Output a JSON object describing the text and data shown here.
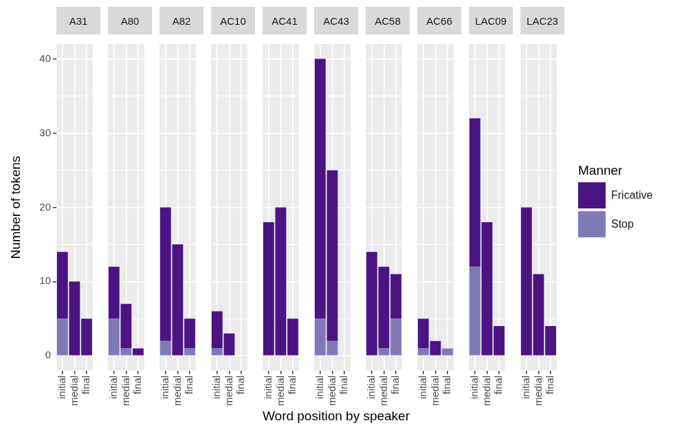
{
  "chart_data": [
    {
      "type": "bar",
      "title": "A31",
      "categories": [
        "initial",
        "medial",
        "final"
      ],
      "stacked": true,
      "series": [
        {
          "name": "Stop",
          "color": "#8079b8",
          "values": [
            5,
            0,
            0
          ]
        },
        {
          "name": "Fricative",
          "color": "#4b1482",
          "values": [
            9,
            10,
            5
          ]
        }
      ],
      "ylim": [
        -2,
        42
      ],
      "yticks": [
        0,
        {
          "value": 5,
          "label": null
        },
        10,
        {
          "value": 15,
          "label": null
        },
        20,
        {
          "value": 25,
          "label": null
        },
        30,
        {
          "value": 35,
          "label": null
        },
        40
      ],
      "ylabel": "Number of tokens",
      "legend": "right",
      "legend_title": "Manner",
      "grid": true
    },
    {
      "type": "bar",
      "title": "A80",
      "categories": [
        "initial",
        "medial",
        "final"
      ],
      "stacked": true,
      "series": [
        {
          "name": "Stop",
          "color": "#8079b8",
          "values": [
            5,
            1,
            0
          ]
        },
        {
          "name": "Fricative",
          "color": "#4b1482",
          "values": [
            7,
            6,
            1
          ]
        }
      ],
      "ylim": [
        -2,
        42
      ],
      "yticks": [
        0,
        {
          "value": 5,
          "label": null
        },
        10,
        {
          "value": 15,
          "label": null
        },
        20,
        {
          "value": 25,
          "label": null
        },
        30,
        {
          "value": 35,
          "label": null
        },
        40
      ],
      "tick_labels": "x",
      "grid": true
    },
    {
      "type": "bar",
      "title": "A82",
      "categories": [
        "initial",
        "medial",
        "final"
      ],
      "stacked": true,
      "series": [
        {
          "name": "Stop",
          "color": "#8079b8",
          "values": [
            2,
            0,
            1
          ]
        },
        {
          "name": "Fricative",
          "color": "#4b1482",
          "values": [
            18,
            15,
            4
          ]
        }
      ],
      "ylim": [
        -2,
        42
      ],
      "yticks": [
        0,
        {
          "value": 5,
          "label": null
        },
        10,
        {
          "value": 15,
          "label": null
        },
        20,
        {
          "value": 25,
          "label": null
        },
        30,
        {
          "value": 35,
          "label": null
        },
        40
      ],
      "tick_labels": "x",
      "grid": true
    },
    {
      "type": "bar",
      "title": "AC10",
      "categories": [
        "initial",
        "medial",
        "final"
      ],
      "stacked": true,
      "series": [
        {
          "name": "Stop",
          "color": "#8079b8",
          "values": [
            1,
            0,
            0
          ]
        },
        {
          "name": "Fricative",
          "color": "#4b1482",
          "values": [
            5,
            3,
            0
          ]
        }
      ],
      "ylim": [
        -2,
        42
      ],
      "yticks": [
        0,
        {
          "value": 5,
          "label": null
        },
        10,
        {
          "value": 15,
          "label": null
        },
        20,
        {
          "value": 25,
          "label": null
        },
        30,
        {
          "value": 35,
          "label": null
        },
        40
      ],
      "tick_labels": "x",
      "grid": true
    },
    {
      "type": "bar",
      "title": "AC41",
      "categories": [
        "initial",
        "medial",
        "final"
      ],
      "stacked": true,
      "series": [
        {
          "name": "Stop",
          "color": "#8079b8",
          "values": [
            0,
            0,
            0
          ]
        },
        {
          "name": "Fricative",
          "color": "#4b1482",
          "values": [
            18,
            20,
            5
          ]
        }
      ],
      "ylim": [
        -2,
        42
      ],
      "yticks": [
        0,
        {
          "value": 5,
          "label": null
        },
        10,
        {
          "value": 15,
          "label": null
        },
        20,
        {
          "value": 25,
          "label": null
        },
        30,
        {
          "value": 35,
          "label": null
        },
        40
      ],
      "tick_labels": "x",
      "grid": true
    },
    {
      "type": "bar",
      "title": "AC43",
      "categories": [
        "initial",
        "medial",
        "final"
      ],
      "stacked": true,
      "series": [
        {
          "name": "Stop",
          "color": "#8079b8",
          "values": [
            5,
            2,
            0
          ]
        },
        {
          "name": "Fricative",
          "color": "#4b1482",
          "values": [
            35,
            23,
            0
          ]
        }
      ],
      "ylim": [
        -2,
        42
      ],
      "yticks": [
        0,
        {
          "value": 5,
          "label": null
        },
        10,
        {
          "value": 15,
          "label": null
        },
        20,
        {
          "value": 25,
          "label": null
        },
        30,
        {
          "value": 35,
          "label": null
        },
        40
      ],
      "xlabel": "Word position by speaker",
      "tick_labels": "x",
      "grid": true
    },
    {
      "type": "bar",
      "title": "AC58",
      "categories": [
        "initial",
        "medial",
        "final"
      ],
      "stacked": true,
      "series": [
        {
          "name": "Stop",
          "color": "#8079b8",
          "values": [
            0,
            1,
            5
          ]
        },
        {
          "name": "Fricative",
          "color": "#4b1482",
          "values": [
            14,
            11,
            6
          ]
        }
      ],
      "ylim": [
        -2,
        42
      ],
      "yticks": [
        0,
        {
          "value": 5,
          "label": null
        },
        10,
        {
          "value": 15,
          "label": null
        },
        20,
        {
          "value": 25,
          "label": null
        },
        30,
        {
          "value": 35,
          "label": null
        },
        40
      ],
      "tick_labels": "x",
      "grid": true
    },
    {
      "type": "bar",
      "title": "AC66",
      "categories": [
        "initial",
        "medial",
        "final"
      ],
      "stacked": true,
      "series": [
        {
          "name": "Stop",
          "color": "#8079b8",
          "values": [
            1,
            0,
            1
          ]
        },
        {
          "name": "Fricative",
          "color": "#4b1482",
          "values": [
            4,
            2,
            0
          ]
        }
      ],
      "ylim": [
        -2,
        42
      ],
      "yticks": [
        0,
        {
          "value": 5,
          "label": null
        },
        10,
        {
          "value": 15,
          "label": null
        },
        20,
        {
          "value": 25,
          "label": null
        },
        30,
        {
          "value": 35,
          "label": null
        },
        40
      ],
      "tick_labels": "x",
      "grid": true
    },
    {
      "type": "bar",
      "title": "LAC09",
      "categories": [
        "initial",
        "medial",
        "final"
      ],
      "stacked": true,
      "series": [
        {
          "name": "Stop",
          "color": "#8079b8",
          "values": [
            12,
            0,
            0
          ]
        },
        {
          "name": "Fricative",
          "color": "#4b1482",
          "values": [
            20,
            18,
            4
          ]
        }
      ],
      "ylim": [
        -2,
        42
      ],
      "yticks": [
        0,
        {
          "value": 5,
          "label": null
        },
        10,
        {
          "value": 15,
          "label": null
        },
        20,
        {
          "value": 25,
          "label": null
        },
        30,
        {
          "value": 35,
          "label": null
        },
        40
      ],
      "tick_labels": "x",
      "grid": true
    },
    {
      "type": "bar",
      "title": "LAC23",
      "categories": [
        "initial",
        "medial",
        "final"
      ],
      "stacked": true,
      "series": [
        {
          "name": "Stop",
          "color": "#8079b8",
          "values": [
            0,
            0,
            0
          ]
        },
        {
          "name": "Fricative",
          "color": "#4b1482",
          "values": [
            20,
            11,
            4
          ]
        }
      ],
      "ylim": [
        -2,
        42
      ],
      "yticks": [
        0,
        {
          "value": 5,
          "label": null
        },
        10,
        {
          "value": 15,
          "label": null
        },
        20,
        {
          "value": 25,
          "label": null
        },
        30,
        {
          "value": 35,
          "label": null
        },
        40
      ],
      "tick_labels": "x",
      "grid": true
    }
  ]
}
